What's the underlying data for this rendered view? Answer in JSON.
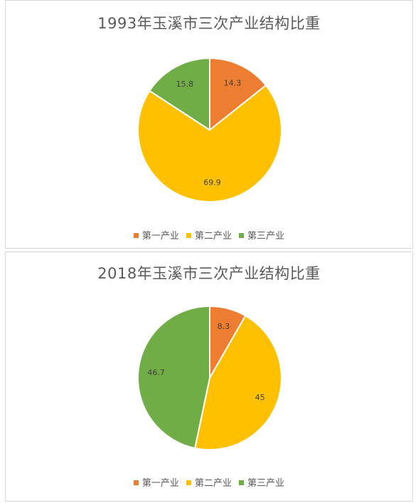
{
  "colors": {
    "primary": "#ED7D31",
    "secondary": "#FFC000",
    "tertiary": "#70AD47"
  },
  "chart_data": [
    {
      "type": "pie",
      "title": "1993年玉溪市三次产业结构比重",
      "categories": [
        "第一产业",
        "第二产业",
        "第三产业"
      ],
      "values": [
        14.3,
        69.9,
        15.8
      ],
      "labels": [
        "14.3",
        "69.9",
        "15.8"
      ],
      "legend_position": "bottom"
    },
    {
      "type": "pie",
      "title": "2018年玉溪市三次产业结构比重",
      "categories": [
        "第一产业",
        "第二产业",
        "第三产业"
      ],
      "values": [
        8.3,
        45,
        46.7
      ],
      "labels": [
        "8.3",
        "45",
        "46.7"
      ],
      "legend_position": "bottom"
    }
  ]
}
